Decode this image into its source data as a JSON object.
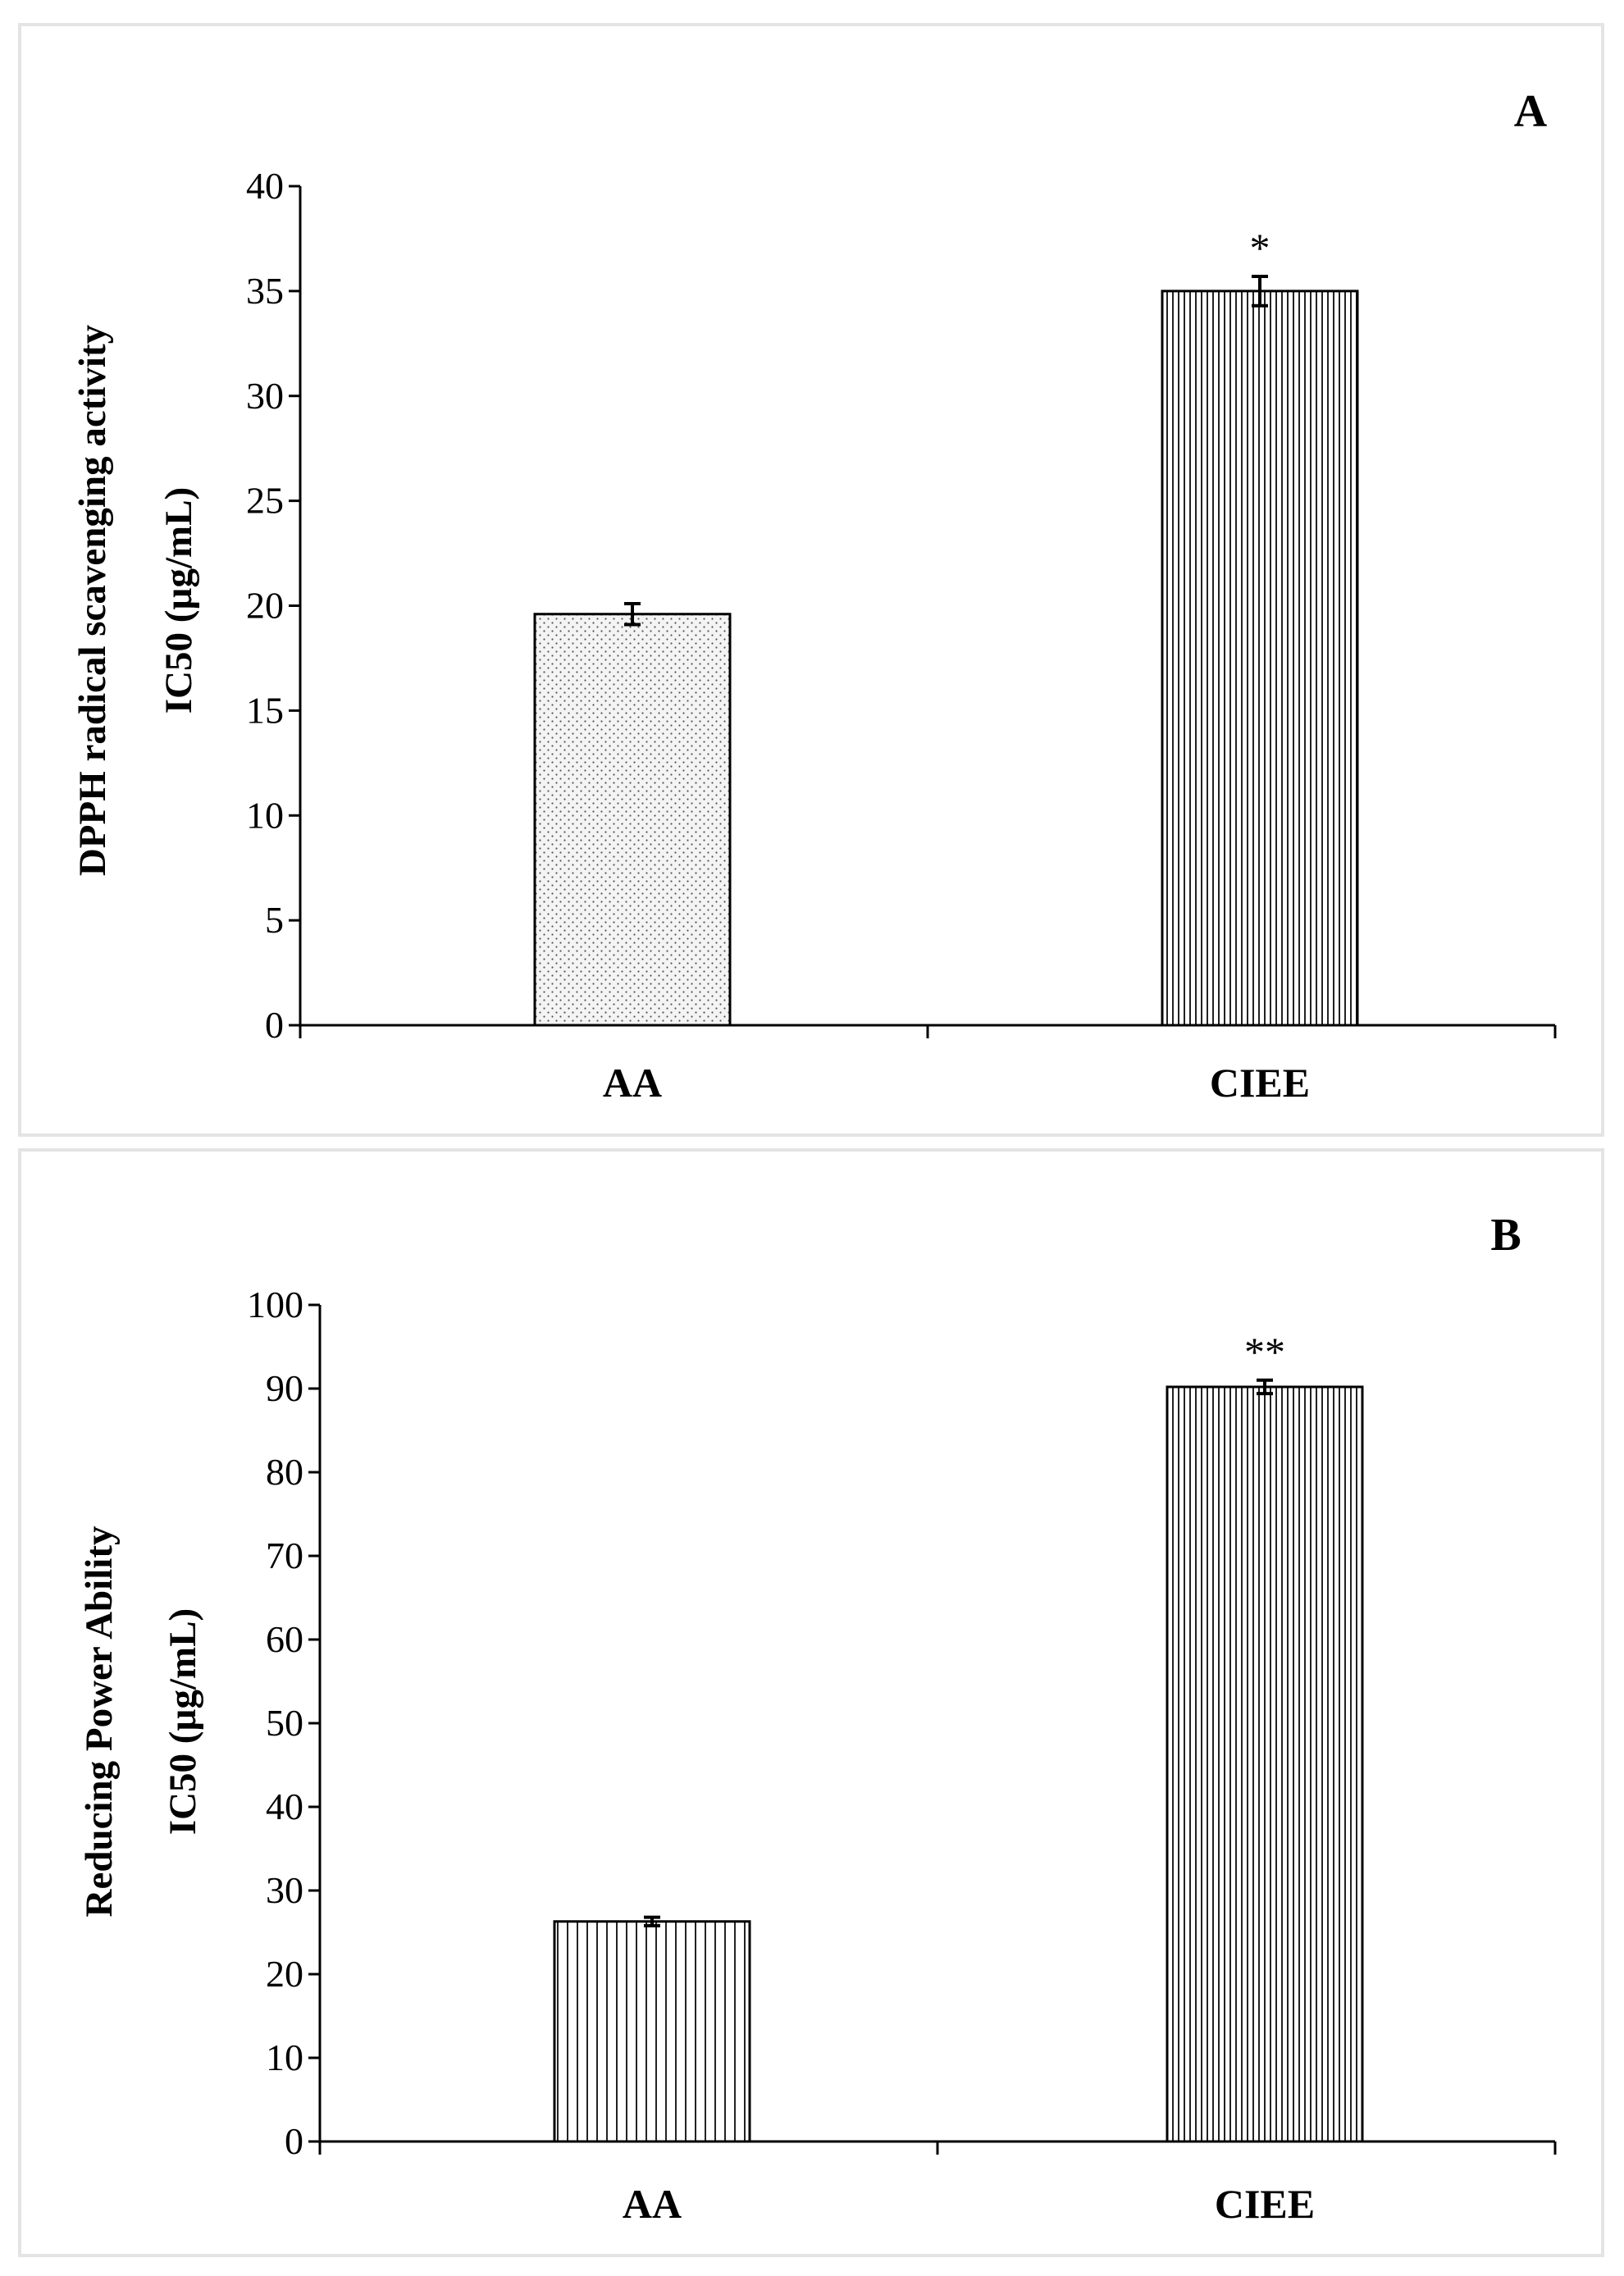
{
  "chart_data": [
    {
      "type": "bar",
      "panel_label": "A",
      "categories": [
        "AA",
        "CIEE"
      ],
      "values": [
        19.6,
        35.0
      ],
      "errors": [
        0.5,
        0.7
      ],
      "annotations": [
        "",
        "*"
      ],
      "patterns": [
        "dots",
        "stripes-fine"
      ],
      "ylabel_line1": "DPPH radical scavenging activity",
      "ylabel_line2": "IC50 (µg/mL)",
      "xlabel": "",
      "ylim": [
        0,
        40
      ],
      "yticks": [
        0,
        5,
        10,
        15,
        20,
        25,
        30,
        35,
        40
      ],
      "grid": false
    },
    {
      "type": "bar",
      "panel_label": "B",
      "categories": [
        "AA",
        "CIEE"
      ],
      "values": [
        26.3,
        90.2
      ],
      "errors": [
        0.5,
        0.8
      ],
      "annotations": [
        "",
        "**"
      ],
      "patterns": [
        "stripes",
        "stripes-fine"
      ],
      "ylabel_line1": "Reducing Power Ability",
      "ylabel_line2": "IC50 (µg/mL)",
      "xlabel": "",
      "ylim": [
        0,
        100
      ],
      "yticks": [
        0,
        10,
        20,
        30,
        40,
        50,
        60,
        70,
        80,
        90,
        100
      ],
      "grid": false
    }
  ]
}
